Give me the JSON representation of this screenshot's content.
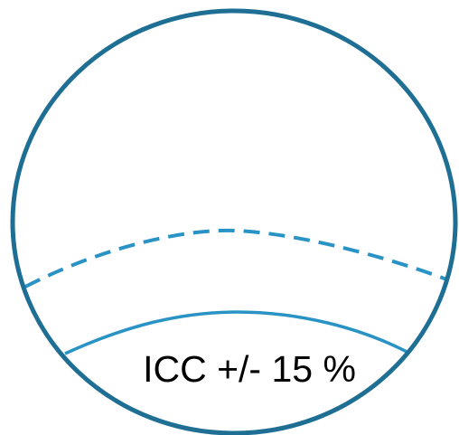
{
  "diagram": {
    "label": "ICC  +/- 15 %",
    "colors": {
      "outline": "#1f6f95",
      "dashed_line": "#2a93c5",
      "solid_curve": "#2a93c5",
      "text": "#000000",
      "background": "#ffffff"
    }
  }
}
